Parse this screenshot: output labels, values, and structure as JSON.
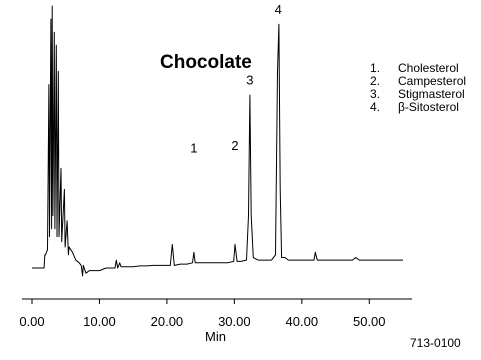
{
  "chart_data": {
    "type": "line",
    "title": "Chocolate",
    "xlabel": "Min",
    "ylabel": "",
    "xlim": [
      0,
      55
    ],
    "ylim": [
      0,
      100
    ],
    "x_ticks": [
      "0.00",
      "10.00",
      "20.00",
      "30.00",
      "40.00",
      "50.00"
    ],
    "grid": false,
    "legend_position": "top-right",
    "legend": [
      {
        "num": "1.",
        "label": "Cholesterol"
      },
      {
        "num": "2.",
        "label": "Campesterol"
      },
      {
        "num": "3.",
        "label": "Stigmasterol"
      },
      {
        "num": "4.",
        "label": "β-Sitosterol"
      }
    ],
    "peak_labels": [
      {
        "label": "1",
        "x": 24.0,
        "y": 44
      },
      {
        "label": "2",
        "x": 30.1,
        "y": 45
      },
      {
        "label": "3",
        "x": 32.3,
        "y": 70
      },
      {
        "label": "4",
        "x": 36.5,
        "y": 97
      }
    ],
    "series": [
      {
        "color": "#000000",
        "points": [
          [
            0.0,
            0
          ],
          [
            1.8,
            0
          ],
          [
            1.9,
            5
          ],
          [
            2.0,
            5
          ],
          [
            2.3,
            7
          ],
          [
            2.5,
            70
          ],
          [
            2.6,
            12
          ],
          [
            2.8,
            95
          ],
          [
            2.9,
            15
          ],
          [
            3.0,
            100
          ],
          [
            3.1,
            20
          ],
          [
            3.3,
            90
          ],
          [
            3.4,
            15
          ],
          [
            3.6,
            85
          ],
          [
            3.7,
            12
          ],
          [
            3.9,
            75
          ],
          [
            4.0,
            12
          ],
          [
            4.3,
            38
          ],
          [
            4.4,
            10
          ],
          [
            4.8,
            30
          ],
          [
            4.9,
            8
          ],
          [
            5.2,
            18
          ],
          [
            5.4,
            5
          ],
          [
            5.5,
            8
          ],
          [
            6.0,
            6
          ],
          [
            6.5,
            3
          ],
          [
            7.0,
            2
          ],
          [
            7.3,
            1
          ],
          [
            7.5,
            -3
          ],
          [
            7.6,
            1
          ],
          [
            8.0,
            -2
          ],
          [
            8.5,
            -1
          ],
          [
            9.0,
            -1
          ],
          [
            10.0,
            -1
          ],
          [
            11.0,
            0
          ],
          [
            12.0,
            0
          ],
          [
            12.3,
            0
          ],
          [
            12.5,
            3
          ],
          [
            12.7,
            0
          ],
          [
            13.0,
            2
          ],
          [
            13.2,
            0.5
          ],
          [
            14.0,
            0.5
          ],
          [
            15.0,
            0.5
          ],
          [
            16.0,
            0.8
          ],
          [
            17.0,
            0.8
          ],
          [
            18.0,
            1
          ],
          [
            19.0,
            1
          ],
          [
            20.5,
            1
          ],
          [
            20.8,
            9
          ],
          [
            21.1,
            1
          ],
          [
            22.0,
            1.5
          ],
          [
            23.0,
            1.5
          ],
          [
            23.8,
            2
          ],
          [
            24.0,
            6
          ],
          [
            24.2,
            2
          ],
          [
            25.0,
            2
          ],
          [
            26.0,
            2
          ],
          [
            27.0,
            2
          ],
          [
            28.0,
            2
          ],
          [
            29.0,
            2
          ],
          [
            29.9,
            2.5
          ],
          [
            30.1,
            9
          ],
          [
            30.4,
            2.5
          ],
          [
            31.0,
            2.5
          ],
          [
            31.8,
            3
          ],
          [
            32.1,
            20
          ],
          [
            32.3,
            66
          ],
          [
            32.5,
            20
          ],
          [
            32.8,
            4
          ],
          [
            33.5,
            3
          ],
          [
            34.5,
            3
          ],
          [
            35.5,
            3
          ],
          [
            36.1,
            5
          ],
          [
            36.4,
            75
          ],
          [
            36.6,
            93
          ],
          [
            36.8,
            30
          ],
          [
            37.0,
            4
          ],
          [
            37.5,
            4
          ],
          [
            38.0,
            3
          ],
          [
            40.0,
            3
          ],
          [
            41.8,
            3
          ],
          [
            42.0,
            6
          ],
          [
            42.3,
            3
          ],
          [
            44.0,
            3
          ],
          [
            46.0,
            3
          ],
          [
            47.5,
            3
          ],
          [
            48.0,
            4
          ],
          [
            48.5,
            3
          ],
          [
            50.0,
            3
          ],
          [
            52.0,
            3
          ],
          [
            55.0,
            3
          ]
        ]
      }
    ]
  },
  "figure_code": "713-0100"
}
